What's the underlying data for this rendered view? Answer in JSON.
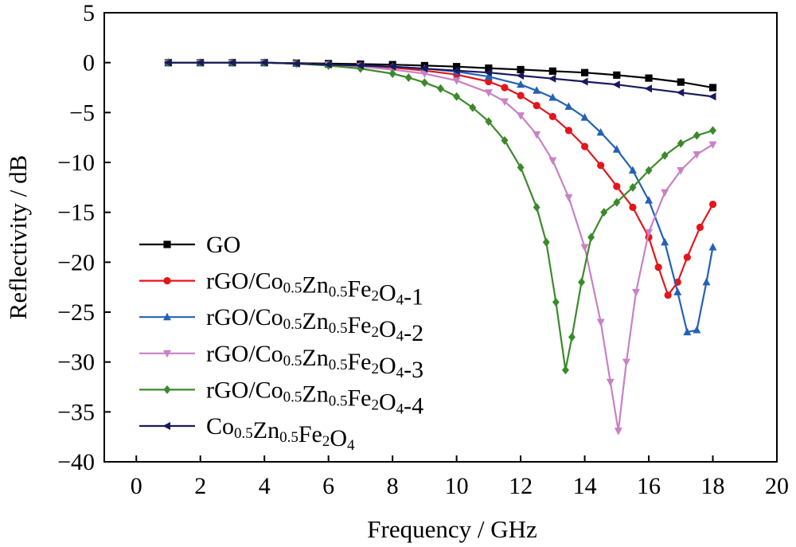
{
  "chart_data": {
    "type": "line",
    "title": "",
    "xlabel": "Frequency / GHz",
    "ylabel": "Reflectivity / dB",
    "xlim": [
      -1,
      20
    ],
    "ylim": [
      -40,
      5
    ],
    "xticks": [
      0,
      2,
      4,
      6,
      8,
      10,
      12,
      14,
      16,
      18,
      20
    ],
    "yticks": [
      5,
      0,
      -5,
      -10,
      -15,
      -20,
      -25,
      -30,
      -35,
      -40
    ],
    "legend_position": "bottom-left",
    "grid": false,
    "series": [
      {
        "name": "GO",
        "legend": [
          {
            "t": "GO"
          }
        ],
        "color": "#000000",
        "marker": "square",
        "x": [
          1,
          2,
          3,
          4,
          5,
          6,
          7,
          8,
          9,
          10,
          11,
          12,
          13,
          14,
          15,
          16,
          17,
          18
        ],
        "y": [
          0,
          0,
          0,
          0,
          -0.05,
          -0.1,
          -0.15,
          -0.2,
          -0.3,
          -0.4,
          -0.55,
          -0.7,
          -0.85,
          -1.0,
          -1.25,
          -1.55,
          -1.95,
          -2.5
        ]
      },
      {
        "name": "rGO/Co0.5Zn0.5Fe2O4-1",
        "legend": [
          {
            "t": "rGO/Co"
          },
          {
            "t": "0.5",
            "s": "sub"
          },
          {
            "t": "Zn"
          },
          {
            "t": "0.5",
            "s": "sub"
          },
          {
            "t": "Fe"
          },
          {
            "t": "2",
            "s": "sub"
          },
          {
            "t": "O"
          },
          {
            "t": "4",
            "s": "sub"
          },
          {
            "t": "-1"
          }
        ],
        "color": "#e4151c",
        "marker": "circle",
        "x": [
          1,
          2,
          3,
          4,
          5,
          6,
          7,
          8,
          9,
          10,
          11,
          11.5,
          12,
          12.5,
          13,
          13.5,
          14,
          14.5,
          15,
          15.5,
          16,
          16.3,
          16.6,
          16.9,
          17.2,
          17.6,
          18
        ],
        "y": [
          0,
          0,
          0,
          0,
          -0.1,
          -0.2,
          -0.3,
          -0.5,
          -0.8,
          -1.2,
          -1.9,
          -2.5,
          -3.3,
          -4.3,
          -5.4,
          -6.8,
          -8.4,
          -10.3,
          -12.4,
          -14.5,
          -17.5,
          -20.5,
          -23.3,
          -22.0,
          -19.5,
          -16.5,
          -14.2
        ]
      },
      {
        "name": "rGO/Co0.5Zn0.5Fe2O4-2",
        "legend": [
          {
            "t": "rGO/Co"
          },
          {
            "t": "0.5",
            "s": "sub"
          },
          {
            "t": "Zn"
          },
          {
            "t": "0.5",
            "s": "sub"
          },
          {
            "t": "Fe"
          },
          {
            "t": "2",
            "s": "sub"
          },
          {
            "t": "O"
          },
          {
            "t": "4",
            "s": "sub"
          },
          {
            "t": "-2"
          }
        ],
        "color": "#2361b6",
        "marker": "triangle-up",
        "x": [
          1,
          2,
          3,
          4,
          5,
          6,
          7,
          8,
          9,
          10,
          11,
          12,
          12.5,
          13,
          13.5,
          14,
          14.5,
          15,
          15.5,
          16,
          16.5,
          16.9,
          17.2,
          17.5,
          17.8,
          18
        ],
        "y": [
          0,
          0,
          0,
          0,
          -0.1,
          -0.2,
          -0.3,
          -0.4,
          -0.6,
          -0.9,
          -1.4,
          -2.2,
          -2.8,
          -3.5,
          -4.4,
          -5.5,
          -7.0,
          -8.7,
          -10.8,
          -13.8,
          -18.0,
          -23.0,
          -27.0,
          -26.8,
          -22.0,
          -18.5
        ]
      },
      {
        "name": "rGO/Co0.5Zn0.5Fe2O4-3",
        "legend": [
          {
            "t": "rGO/Co"
          },
          {
            "t": "0.5",
            "s": "sub"
          },
          {
            "t": "Zn"
          },
          {
            "t": "0.5",
            "s": "sub"
          },
          {
            "t": "Fe"
          },
          {
            "t": "2",
            "s": "sub"
          },
          {
            "t": "O"
          },
          {
            "t": "4",
            "s": "sub"
          },
          {
            "t": "-3"
          }
        ],
        "color": "#c881c6",
        "marker": "triangle-down",
        "x": [
          1,
          2,
          3,
          4,
          5,
          6,
          7,
          8,
          9,
          10,
          11,
          11.5,
          12,
          12.5,
          13,
          13.5,
          14,
          14.5,
          14.8,
          15.05,
          15.3,
          15.6,
          16,
          16.5,
          17,
          17.5,
          18
        ],
        "y": [
          0,
          0,
          0,
          0,
          -0.1,
          -0.2,
          -0.4,
          -0.7,
          -1.1,
          -1.8,
          -3.0,
          -3.9,
          -5.3,
          -7.2,
          -9.8,
          -13.5,
          -18.5,
          -26.0,
          -32.0,
          -36.9,
          -30.0,
          -23.0,
          -17.0,
          -13.0,
          -10.8,
          -9.2,
          -8.2
        ]
      },
      {
        "name": "rGO/Co0.5Zn0.5Fe2O4-4",
        "legend": [
          {
            "t": "rGO/Co"
          },
          {
            "t": "0.5",
            "s": "sub"
          },
          {
            "t": "Zn"
          },
          {
            "t": "0.5",
            "s": "sub"
          },
          {
            "t": "Fe"
          },
          {
            "t": "2",
            "s": "sub"
          },
          {
            "t": "O"
          },
          {
            "t": "4",
            "s": "sub"
          },
          {
            "t": "-4"
          }
        ],
        "color": "#3b8a2a",
        "marker": "diamond",
        "x": [
          1,
          2,
          3,
          4,
          5,
          6,
          7,
          8,
          8.5,
          9,
          9.5,
          10,
          10.5,
          11,
          11.5,
          12,
          12.5,
          12.8,
          13.1,
          13.4,
          13.6,
          13.9,
          14.2,
          14.6,
          15,
          15.5,
          16,
          16.5,
          17,
          17.5,
          18
        ],
        "y": [
          0,
          0,
          0,
          0,
          -0.1,
          -0.3,
          -0.6,
          -1.1,
          -1.5,
          -2.0,
          -2.6,
          -3.4,
          -4.5,
          -5.9,
          -7.8,
          -10.5,
          -14.5,
          -18.0,
          -24.0,
          -30.8,
          -27.5,
          -22.0,
          -17.5,
          -15.0,
          -14.0,
          -12.5,
          -10.8,
          -9.3,
          -8.1,
          -7.3,
          -6.8
        ]
      },
      {
        "name": "Co0.5Zn0.5Fe2O4",
        "legend": [
          {
            "t": "Co"
          },
          {
            "t": "0.5",
            "s": "sub"
          },
          {
            "t": "Zn"
          },
          {
            "t": "0.5",
            "s": "sub"
          },
          {
            "t": "Fe"
          },
          {
            "t": "2",
            "s": "sub"
          },
          {
            "t": "O"
          },
          {
            "t": "4",
            "s": "sub"
          }
        ],
        "color": "#171a5e",
        "marker": "triangle-left",
        "x": [
          1,
          2,
          3,
          4,
          5,
          6,
          7,
          8,
          9,
          10,
          11,
          12,
          13,
          14,
          15,
          16,
          17,
          18
        ],
        "y": [
          0,
          0,
          0,
          0,
          -0.1,
          -0.2,
          -0.3,
          -0.4,
          -0.6,
          -0.8,
          -1.0,
          -1.3,
          -1.6,
          -1.9,
          -2.2,
          -2.6,
          -3.0,
          -3.4
        ]
      }
    ]
  }
}
